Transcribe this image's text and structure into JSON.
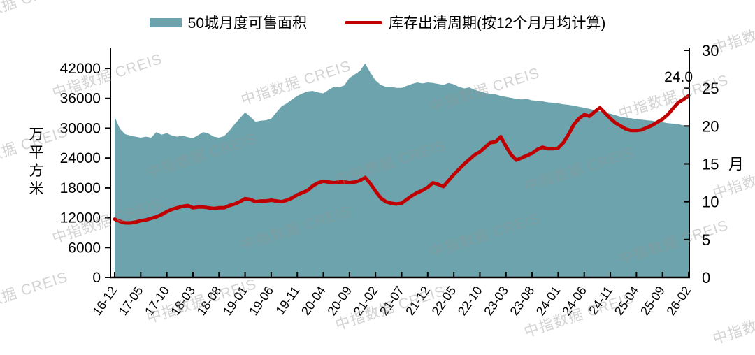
{
  "watermark": {
    "text": "中指数据 CREIS"
  },
  "legend": {
    "items": [
      {
        "label": "50城月度可售面积",
        "swatch": "area",
        "color": "#6CA3AC"
      },
      {
        "label": "库存出清周期(按12个月月均计算)",
        "swatch": "line",
        "color": "#C00000"
      }
    ]
  },
  "chart_data": {
    "type": "area+line combo",
    "grid": false,
    "legend_position": "top",
    "x": [
      "16-12",
      "17-01",
      "17-02",
      "17-03",
      "17-04",
      "17-05",
      "17-06",
      "17-07",
      "17-08",
      "17-09",
      "17-10",
      "17-11",
      "17-12",
      "18-01",
      "18-02",
      "18-03",
      "18-04",
      "18-05",
      "18-06",
      "18-07",
      "18-08",
      "18-09",
      "18-10",
      "18-11",
      "18-12",
      "19-01",
      "19-02",
      "19-03",
      "19-04",
      "19-05",
      "19-06",
      "19-07",
      "19-08",
      "19-09",
      "19-10",
      "19-11",
      "19-12",
      "20-01",
      "20-02",
      "20-03",
      "20-04",
      "20-05",
      "20-06",
      "20-07",
      "20-08",
      "20-09",
      "20-10",
      "20-11",
      "20-12",
      "21-01",
      "21-02",
      "21-03",
      "21-04",
      "21-05",
      "21-06",
      "21-07",
      "21-08",
      "21-09",
      "21-10",
      "21-11",
      "21-12",
      "22-01",
      "22-02",
      "22-03",
      "22-04",
      "22-05",
      "22-06",
      "22-07",
      "22-08",
      "22-09",
      "22-10",
      "22-11",
      "22-12",
      "23-01",
      "23-02",
      "23-03",
      "23-04",
      "23-05",
      "23-06",
      "23-07",
      "23-08",
      "23-09",
      "23-10",
      "23-11",
      "23-12",
      "24-01",
      "24-02",
      "24-03",
      "24-04",
      "24-05",
      "24-06",
      "24-07",
      "24-08",
      "24-09",
      "24-10",
      "24-11",
      "24-12",
      "25-01",
      "25-02",
      "25-03",
      "25-04",
      "25-05",
      "25-06",
      "25-07",
      "25-08",
      "25-09",
      "25-10",
      "25-11",
      "25-12",
      "26-01",
      "26-02"
    ],
    "x_tick_labels": [
      "16-12",
      "17-05",
      "17-10",
      "18-03",
      "18-08",
      "19-01",
      "19-06",
      "19-11",
      "20-04",
      "20-09",
      "21-02",
      "21-07",
      "21-12",
      "22-05",
      "22-10",
      "23-03",
      "23-08",
      "24-01",
      "24-06",
      "24-11",
      "25-04",
      "25-09",
      "26-02"
    ],
    "series": [
      {
        "name": "50城月度可售面积",
        "type": "area",
        "axis": "left",
        "color": "#6CA3AC",
        "values": [
          32300,
          29900,
          28800,
          28500,
          28300,
          28100,
          28300,
          28100,
          29200,
          28700,
          29000,
          28500,
          28300,
          28500,
          28200,
          28000,
          28600,
          29200,
          28900,
          28300,
          28100,
          28400,
          29500,
          30800,
          32000,
          33200,
          32300,
          31300,
          31500,
          31600,
          31900,
          33200,
          34400,
          35000,
          35800,
          36500,
          37000,
          37400,
          37500,
          37200,
          37000,
          37700,
          38300,
          38200,
          38600,
          40100,
          40800,
          41500,
          43000,
          41200,
          39600,
          38700,
          38300,
          38300,
          38100,
          38100,
          38500,
          38900,
          39200,
          39000,
          39200,
          39100,
          38900,
          38700,
          39100,
          38800,
          38300,
          38000,
          38200,
          37700,
          37400,
          37100,
          36900,
          36800,
          36500,
          36300,
          36100,
          35900,
          35800,
          35900,
          35600,
          35500,
          35400,
          35200,
          35100,
          35000,
          34800,
          34700,
          34500,
          34300,
          34100,
          33900,
          33600,
          33400,
          33100,
          32900,
          32600,
          32300,
          32100,
          32000,
          31800,
          31700,
          31600,
          31500,
          31300,
          31200,
          31000,
          30900,
          30800,
          30600,
          30500
        ]
      },
      {
        "name": "库存出清周期(按12个月月均计算)",
        "type": "line",
        "axis": "right",
        "color": "#C00000",
        "values": [
          7.7,
          7.4,
          7.2,
          7.2,
          7.3,
          7.5,
          7.6,
          7.8,
          8.0,
          8.3,
          8.7,
          9.0,
          9.2,
          9.4,
          9.5,
          9.2,
          9.3,
          9.3,
          9.2,
          9.1,
          9.2,
          9.2,
          9.5,
          9.7,
          10.0,
          10.4,
          10.3,
          10.0,
          10.1,
          10.1,
          10.2,
          10.1,
          10.0,
          10.2,
          10.5,
          10.9,
          11.2,
          11.5,
          12.1,
          12.5,
          12.7,
          12.6,
          12.5,
          12.6,
          12.6,
          12.5,
          12.6,
          12.8,
          13.2,
          12.4,
          11.4,
          10.5,
          10.0,
          9.8,
          9.7,
          9.8,
          10.3,
          10.8,
          11.2,
          11.5,
          11.9,
          12.5,
          12.3,
          12.0,
          12.8,
          13.6,
          14.3,
          15.0,
          15.6,
          16.2,
          16.6,
          17.2,
          17.8,
          17.9,
          18.6,
          17.3,
          16.2,
          15.5,
          15.8,
          16.1,
          16.4,
          16.9,
          17.2,
          17.0,
          17.0,
          17.1,
          17.8,
          18.9,
          20.2,
          21.0,
          21.5,
          21.3,
          21.9,
          22.4,
          21.7,
          21.0,
          20.4,
          20.0,
          19.6,
          19.4,
          19.4,
          19.5,
          19.8,
          20.1,
          20.5,
          20.9,
          21.5,
          22.3,
          23.1,
          23.5,
          24.0
        ]
      }
    ],
    "left_axis": {
      "title": "万平方米",
      "min": 0,
      "max": 42000,
      "step": 6000,
      "tick_labels": [
        "0",
        "6000",
        "12000",
        "18000",
        "24000",
        "30000",
        "36000",
        "42000"
      ]
    },
    "right_axis": {
      "title": "月",
      "min": 0,
      "max": 30,
      "step": 5,
      "tick_labels": [
        "0",
        "5",
        "10",
        "15",
        "20",
        "25",
        "30"
      ]
    },
    "annotation": {
      "text": "24.0",
      "series_index": 1,
      "point_index": 110
    }
  }
}
